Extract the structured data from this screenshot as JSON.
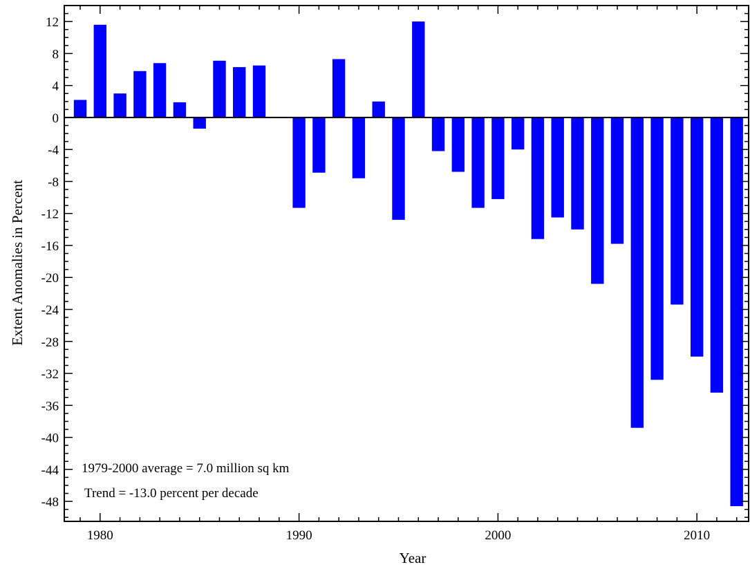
{
  "chart_data": {
    "type": "bar",
    "xlabel": "Year",
    "ylabel": "Extent Anomalies in Percent",
    "x": [
      1979,
      1980,
      1981,
      1982,
      1983,
      1984,
      1985,
      1986,
      1987,
      1988,
      1989,
      1990,
      1991,
      1992,
      1993,
      1994,
      1995,
      1996,
      1997,
      1998,
      1999,
      2000,
      2001,
      2002,
      2003,
      2004,
      2005,
      2006,
      2007,
      2008,
      2009,
      2010,
      2011,
      2012
    ],
    "values": [
      2.2,
      11.6,
      3.0,
      5.8,
      6.8,
      1.9,
      -1.4,
      7.1,
      6.3,
      6.5,
      0,
      -11.3,
      -6.9,
      7.3,
      -7.6,
      2.0,
      -12.8,
      12.0,
      -4.2,
      -6.8,
      -11.3,
      -10.2,
      -4.0,
      -15.2,
      -12.5,
      -14.0,
      -20.8,
      -15.8,
      -38.8,
      -32.8,
      -23.4,
      -29.9,
      -34.4,
      -48.6
    ],
    "xlim": [
      1978.2,
      2012.6
    ],
    "ylim": [
      -50.5,
      14
    ],
    "x_ticks": [
      1980,
      1990,
      2000,
      2010
    ],
    "x_tick_labels": [
      "1980",
      "1990",
      "2000",
      "2010"
    ],
    "y_ticks": [
      12,
      8,
      4,
      0,
      -4,
      -8,
      -12,
      -16,
      -20,
      -24,
      -28,
      -32,
      -36,
      -40,
      -44,
      -48
    ],
    "y_tick_labels": [
      "12",
      "8",
      "4",
      "0",
      "-4",
      "-8",
      "-12",
      "-16",
      "-20",
      "-24",
      "-28",
      "-32",
      "-36",
      "-40",
      "-44",
      "-48"
    ],
    "zero_line": true,
    "grid": false,
    "annotations": [
      "1979-2000 average =  7.0 million sq km",
      "Trend =  -13.0 percent per decade"
    ],
    "colors": {
      "bar": "#0000ff",
      "axis": "#000000"
    }
  }
}
